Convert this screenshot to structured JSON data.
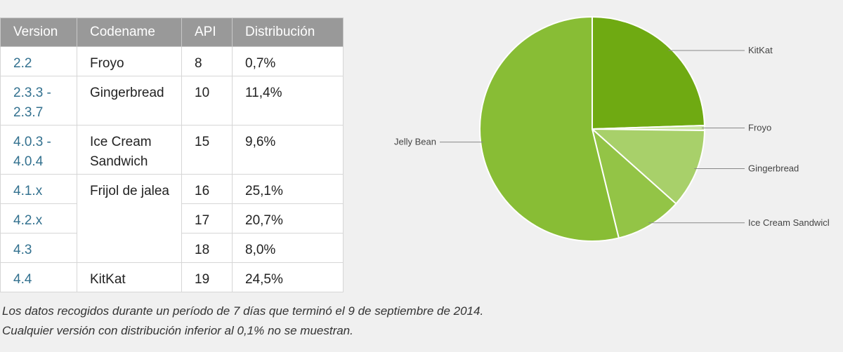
{
  "table": {
    "headers": [
      "Version",
      "Codename",
      "API",
      "Distribución"
    ],
    "rows": [
      {
        "version": "2.2",
        "codename": "Froyo",
        "api": "8",
        "distribution": "0,7%"
      },
      {
        "version": "2.3.3 - 2.3.7",
        "codename": "Gingerbread",
        "api": "10",
        "distribution": "11,4%"
      },
      {
        "version": "4.0.3 - 4.0.4",
        "codename": "Ice Cream Sandwich",
        "api": "15",
        "distribution": "9,6%"
      },
      {
        "version": "4.1.x",
        "codename": "Frijol de jalea",
        "api": "16",
        "distribution": "25,1%"
      },
      {
        "version": "4.2.x",
        "codename": "",
        "api": "17",
        "distribution": "20,7%"
      },
      {
        "version": "4.3",
        "codename": "",
        "api": "18",
        "distribution": "8,0%"
      },
      {
        "version": "4.4",
        "codename": "KitKat",
        "api": "19",
        "distribution": "24,5%"
      }
    ]
  },
  "notes": {
    "line1": "Los datos recogidos durante un período de 7 días que terminó el 9 de septiembre de 2014.",
    "line2": "Cualquier versión con distribución inferior al 0,1% no se muestran."
  },
  "chart_data": {
    "type": "pie",
    "slices": [
      {
        "label": "KitKat",
        "value": 24.5,
        "color": "#6faa12"
      },
      {
        "label": "Froyo",
        "value": 0.7,
        "color": "#c9e3a1"
      },
      {
        "label": "Gingerbread",
        "value": 11.4,
        "color": "#a8d06a"
      },
      {
        "label": "Ice Cream Sandwich",
        "value": 9.6,
        "color": "#93c446"
      },
      {
        "label": "Jelly Bean",
        "value": 53.8,
        "color": "#88bd35"
      }
    ],
    "start": "12 o'clock, clockwise"
  }
}
